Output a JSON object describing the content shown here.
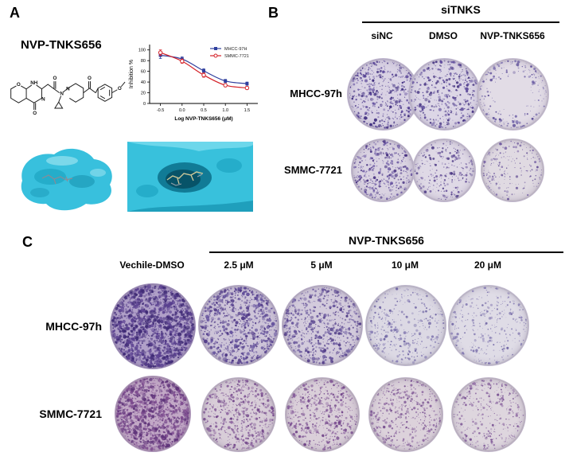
{
  "panels": {
    "A": {
      "label": "A",
      "compound_name": "NVP-TNKS656"
    },
    "B": {
      "label": "B",
      "group_header": "siTNKS",
      "columns": [
        "siNC",
        "DMSO",
        "NVP-TNKS656"
      ],
      "rows": [
        "MHCC-97h",
        "SMMC-7721"
      ],
      "dishes": [
        {
          "row": "MHCC-97h",
          "col": "siNC",
          "density": 520,
          "dot": "#3e2c7e",
          "dot2": "#5a4699",
          "bg": "#d9d2e4",
          "dot_scale": 1.0,
          "edge_bias": 0,
          "seed": 11
        },
        {
          "row": "MHCC-97h",
          "col": "DMSO",
          "density": 430,
          "dot": "#43317f",
          "dot2": "#5d4a9b",
          "bg": "#dcd6e6",
          "dot_scale": 1.0,
          "edge_bias": 0,
          "seed": 22
        },
        {
          "row": "MHCC-97h",
          "col": "NVP-TNKS656",
          "density": 210,
          "dot": "#5a4a96",
          "dot2": "#7265aa",
          "bg": "#e2dce6",
          "dot_scale": 0.9,
          "edge_bias": 0.45,
          "seed": 33
        },
        {
          "row": "SMMC-7721",
          "col": "siNC",
          "density": 400,
          "dot": "#452f80",
          "dot2": "#604b9d",
          "bg": "#dad3e2",
          "dot_scale": 0.95,
          "edge_bias": 0,
          "seed": 44
        },
        {
          "row": "SMMC-7721",
          "col": "DMSO",
          "density": 260,
          "dot": "#4b3884",
          "dot2": "#675199",
          "bg": "#dfd9e6",
          "dot_scale": 0.9,
          "edge_bias": 0,
          "seed": 55
        },
        {
          "row": "SMMC-7721",
          "col": "NVP-TNKS656",
          "density": 200,
          "dot": "#553f8c",
          "dot2": "#6f59a0",
          "bg": "#e0dae2",
          "dot_scale": 0.85,
          "edge_bias": 0.1,
          "seed": 66
        }
      ]
    },
    "C": {
      "label": "C",
      "group_header": "NVP-TNKS656",
      "columns": [
        "Vechile-DMSO",
        "2.5 μM",
        "5 μM",
        "10 μM",
        "20 μM"
      ],
      "rows": [
        "MHCC-97h",
        "SMMC-7721"
      ],
      "dishes": [
        {
          "row": "MHCC-97h",
          "col": "Vechile-DMSO",
          "density": 1500,
          "dot": "#3f2a75",
          "dot2": "#5a4090",
          "bg": "#b0a0c8",
          "dot_scale": 1.3,
          "edge_bias": 0,
          "seed": 101
        },
        {
          "row": "MHCC-97h",
          "col": "2.5 μM",
          "density": 900,
          "dot": "#4a3383",
          "dot2": "#63509c",
          "bg": "#cdc4d8",
          "dot_scale": 1.1,
          "edge_bias": 0,
          "seed": 102
        },
        {
          "row": "MHCC-97h",
          "col": "5 μM",
          "density": 700,
          "dot": "#4f3a86",
          "dot2": "#6a589e",
          "bg": "#d3cbdc",
          "dot_scale": 1.05,
          "edge_bias": 0,
          "seed": 103
        },
        {
          "row": "MHCC-97h",
          "col": "10 μM",
          "density": 380,
          "dot": "#6a5fa0",
          "dot2": "#8379b2",
          "bg": "#dcd9e4",
          "dot_scale": 0.9,
          "edge_bias": 0,
          "seed": 104
        },
        {
          "row": "MHCC-97h",
          "col": "20 μM",
          "density": 330,
          "dot": "#7065a4",
          "dot2": "#887eb4",
          "bg": "#dfdce6",
          "dot_scale": 0.85,
          "edge_bias": 0,
          "seed": 105
        },
        {
          "row": "SMMC-7721",
          "col": "Vechile-DMSO",
          "density": 1200,
          "dot": "#5e3379",
          "dot2": "#7c4a8e",
          "bg": "#c2a8c6",
          "dot_scale": 1.15,
          "edge_bias": 0,
          "seed": 106
        },
        {
          "row": "SMMC-7721",
          "col": "2.5 μM",
          "density": 600,
          "dot": "#6f4287",
          "dot2": "#855a99",
          "bg": "#d8cdd8",
          "dot_scale": 0.95,
          "edge_bias": 0,
          "seed": 107
        },
        {
          "row": "SMMC-7721",
          "col": "5 μM",
          "density": 550,
          "dot": "#714489",
          "dot2": "#875c9b",
          "bg": "#dacfd9",
          "dot_scale": 0.95,
          "edge_bias": 0,
          "seed": 108
        },
        {
          "row": "SMMC-7721",
          "col": "10 μM",
          "density": 480,
          "dot": "#734a8c",
          "dot2": "#89629d",
          "bg": "#dcd2db",
          "dot_scale": 0.9,
          "edge_bias": 0,
          "seed": 109
        },
        {
          "row": "SMMC-7721",
          "col": "20 μM",
          "density": 380,
          "dot": "#775091",
          "dot2": "#8d68a2",
          "bg": "#ded6de",
          "dot_scale": 0.85,
          "edge_bias": 0,
          "seed": 110
        }
      ]
    }
  },
  "chart_data": {
    "type": "line",
    "title": "",
    "xlabel": "Log NVP-TNKS656 (μM)",
    "ylabel": "Inhibition %",
    "x": [
      -0.5,
      0.0,
      0.5,
      1.0,
      1.5
    ],
    "xlim": [
      -0.75,
      1.75
    ],
    "ylim": [
      0,
      110
    ],
    "yticks": [
      0,
      20,
      40,
      60,
      80,
      100
    ],
    "xticks": [
      "-0.5",
      "0.0",
      "0.5",
      "1.0",
      "1.5"
    ],
    "grid": false,
    "legend_position": "top-right",
    "series": [
      {
        "name": "MHCC-97H",
        "color": "#2f3f9e",
        "marker": "filled-square",
        "values": [
          90,
          83,
          61,
          42,
          37
        ],
        "errors": [
          6,
          4,
          4,
          3,
          3
        ]
      },
      {
        "name": "SMMC-7721",
        "color": "#d42027",
        "marker": "open-circle",
        "values": [
          95,
          79,
          53,
          34,
          29
        ],
        "errors": [
          5,
          4,
          4,
          3,
          3
        ]
      }
    ]
  }
}
